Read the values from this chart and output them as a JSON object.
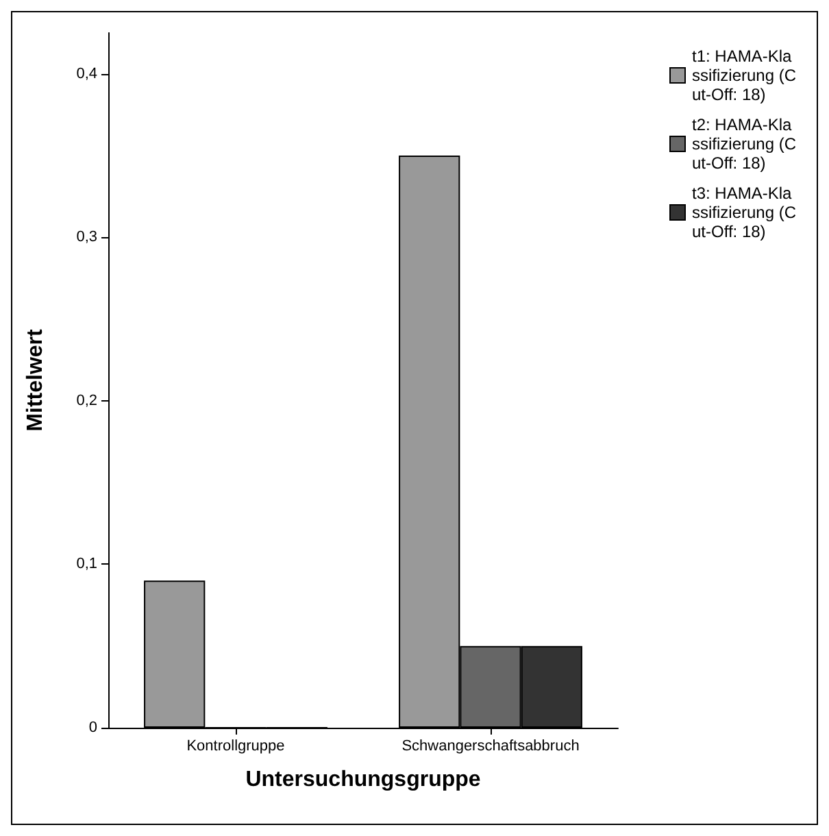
{
  "chart_data": {
    "type": "bar",
    "xlabel": "Untersuchungsgruppe",
    "ylabel": "Mittelwert",
    "categories": [
      "Kontrollgruppe",
      "Schwangerschaftsabbruch"
    ],
    "series": [
      {
        "name": "t1: HAMA-Klassifizierung (Cut-Off: 18)",
        "color": "#999999",
        "values": [
          0.09,
          0.35
        ]
      },
      {
        "name": "t2: HAMA-Klassifizierung (Cut-Off: 18)",
        "color": "#666666",
        "values": [
          0,
          0.05
        ]
      },
      {
        "name": "t3: HAMA-Klassifizierung (Cut-Off: 18)",
        "color": "#333333",
        "values": [
          0,
          0.05
        ]
      }
    ],
    "ylim": [
      0,
      0.425
    ],
    "yticks": [
      0,
      {
        "value": 0.1,
        "label": "0,1"
      },
      {
        "value": 0.2,
        "label": "0,2"
      },
      {
        "value": 0.3,
        "label": "0,3"
      },
      {
        "value": 0.4,
        "label": "0,4"
      }
    ],
    "grid": false,
    "legend": "top right"
  }
}
